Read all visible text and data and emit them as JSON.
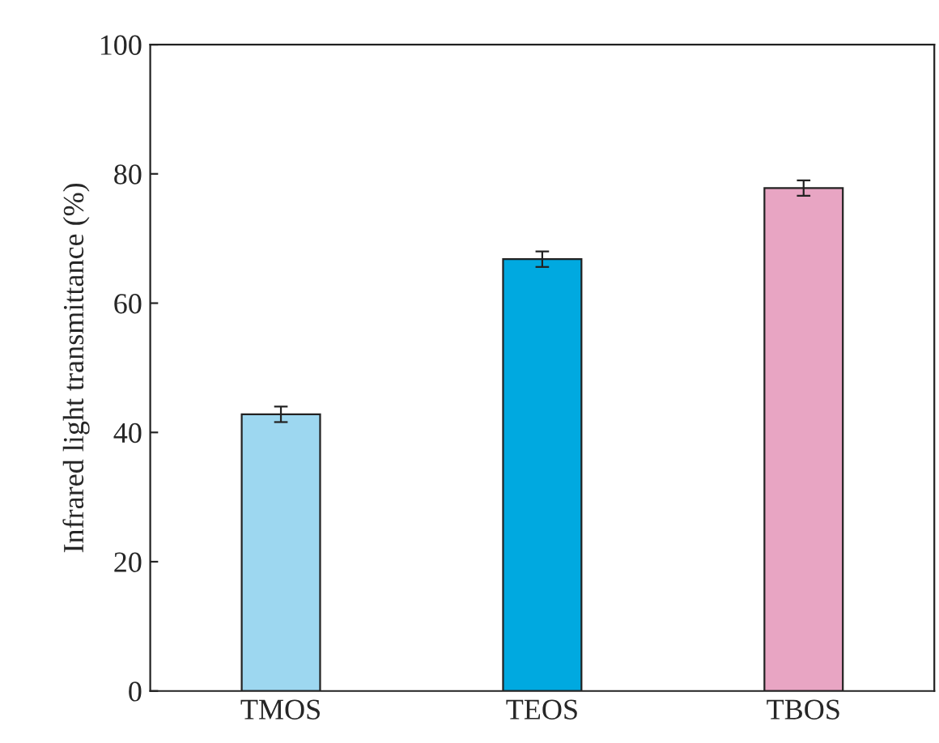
{
  "chart_data": {
    "type": "bar",
    "ylabel": "Infrared light transmittance (%)",
    "categories": [
      "TMOS",
      "TEOS",
      "TBOS"
    ],
    "values": [
      42.8,
      66.8,
      77.8
    ],
    "errors": [
      1.2,
      1.2,
      1.2
    ],
    "colors": [
      "#9dd7f0",
      "#00a9e0",
      "#e8a5c3"
    ],
    "ylim": [
      0,
      100
    ],
    "yticks": [
      0,
      20,
      40,
      60,
      80,
      100
    ],
    "grid": false
  }
}
